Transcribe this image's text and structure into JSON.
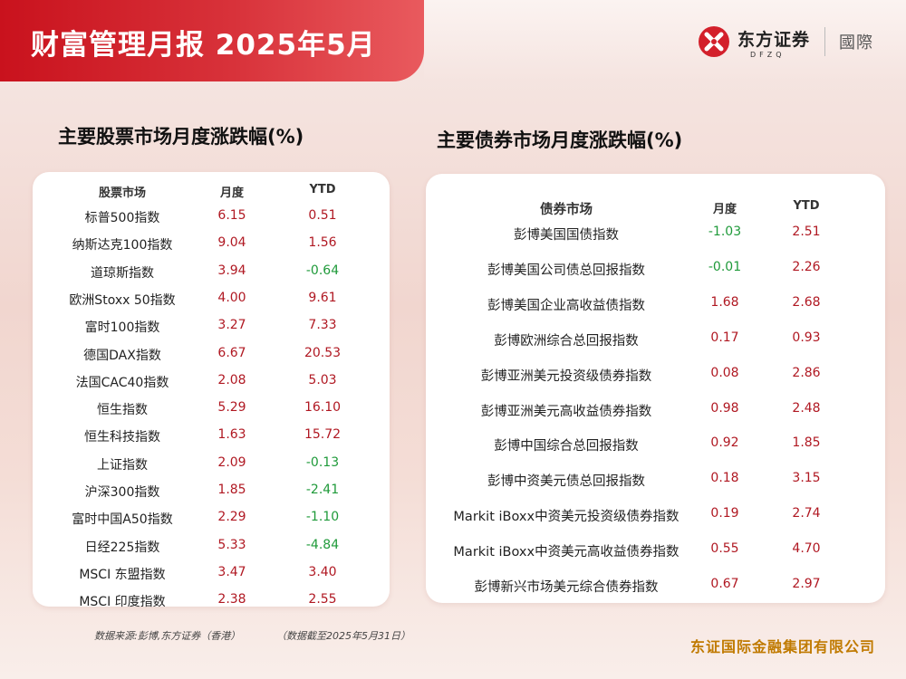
{
  "header": {
    "title": "财富管理月报  2025年5月",
    "logo_name": "东方证券",
    "logo_sub": "DFZQ",
    "logo_region": "國際",
    "brand_color": "#c9121d"
  },
  "equity": {
    "title": "主要股票市场月度涨跌幅(%)",
    "columns": [
      "股票市场",
      "月度",
      "YTD"
    ],
    "rows": [
      {
        "name": "标普500指数",
        "month": "6.15",
        "ytd": "0.51"
      },
      {
        "name": "纳斯达克100指数",
        "month": "9.04",
        "ytd": "1.56"
      },
      {
        "name": "道琼斯指数",
        "month": "3.94",
        "ytd": "-0.64"
      },
      {
        "name": "欧洲Stoxx 50指数",
        "month": "4.00",
        "ytd": "9.61"
      },
      {
        "name": "富时100指数",
        "month": "3.27",
        "ytd": "7.33"
      },
      {
        "name": "德国DAX指数",
        "month": "6.67",
        "ytd": "20.53"
      },
      {
        "name": "法国CAC40指数",
        "month": "2.08",
        "ytd": "5.03"
      },
      {
        "name": "恒生指数",
        "month": "5.29",
        "ytd": "16.10"
      },
      {
        "name": "恒生科技指数",
        "month": "1.63",
        "ytd": "15.72"
      },
      {
        "name": "上证指数",
        "month": "2.09",
        "ytd": "-0.13"
      },
      {
        "name": "沪深300指数",
        "month": "1.85",
        "ytd": "-2.41"
      },
      {
        "name": "富时中国A50指数",
        "month": "2.29",
        "ytd": "-1.10"
      },
      {
        "name": "日经225指数",
        "month": "5.33",
        "ytd": "-4.84"
      },
      {
        "name": "MSCI 东盟指数",
        "month": "3.47",
        "ytd": "3.40"
      },
      {
        "name": "MSCI 印度指数",
        "month": "2.38",
        "ytd": "2.55"
      }
    ]
  },
  "bonds": {
    "title": "主要债券市场月度涨跌幅(%)",
    "columns": [
      "债券市场",
      "月度",
      "YTD"
    ],
    "rows": [
      {
        "name": "彭博美国国债指数",
        "month": "-1.03",
        "ytd": "2.51"
      },
      {
        "name": "彭博美国公司债总回报指数",
        "month": "-0.01",
        "ytd": "2.26"
      },
      {
        "name": "彭博美国企业高收益债指数",
        "month": "1.68",
        "ytd": "2.68"
      },
      {
        "name": "彭博欧洲综合总回报指数",
        "month": "0.17",
        "ytd": "0.93"
      },
      {
        "name": "彭博亚洲美元投资级债券指数",
        "month": "0.08",
        "ytd": "2.86"
      },
      {
        "name": "彭博亚洲美元高收益债券指数",
        "month": "0.98",
        "ytd": "2.48"
      },
      {
        "name": "彭博中国综合总回报指数",
        "month": "0.92",
        "ytd": "1.85"
      },
      {
        "name": "彭博中资美元债总回报指数",
        "month": "0.18",
        "ytd": "3.15"
      },
      {
        "name": "Markit iBoxx中资美元投资级债券指数",
        "month": "0.19",
        "ytd": "2.74"
      },
      {
        "name": "Markit iBoxx中资美元高收益债券指数",
        "month": "0.55",
        "ytd": "4.70"
      },
      {
        "name": "彭博新兴市场美元综合债券指数",
        "month": "0.67",
        "ytd": "2.97"
      }
    ]
  },
  "footer": {
    "source": "数据来源:彭博,东方证券（香港）",
    "date_note": "（数据截至2025年5月31日）",
    "company": "东证国际金融集团有限公司"
  },
  "colors": {
    "positive": "#b01822",
    "negative": "#1f9a3a",
    "company": "#c07a00"
  }
}
